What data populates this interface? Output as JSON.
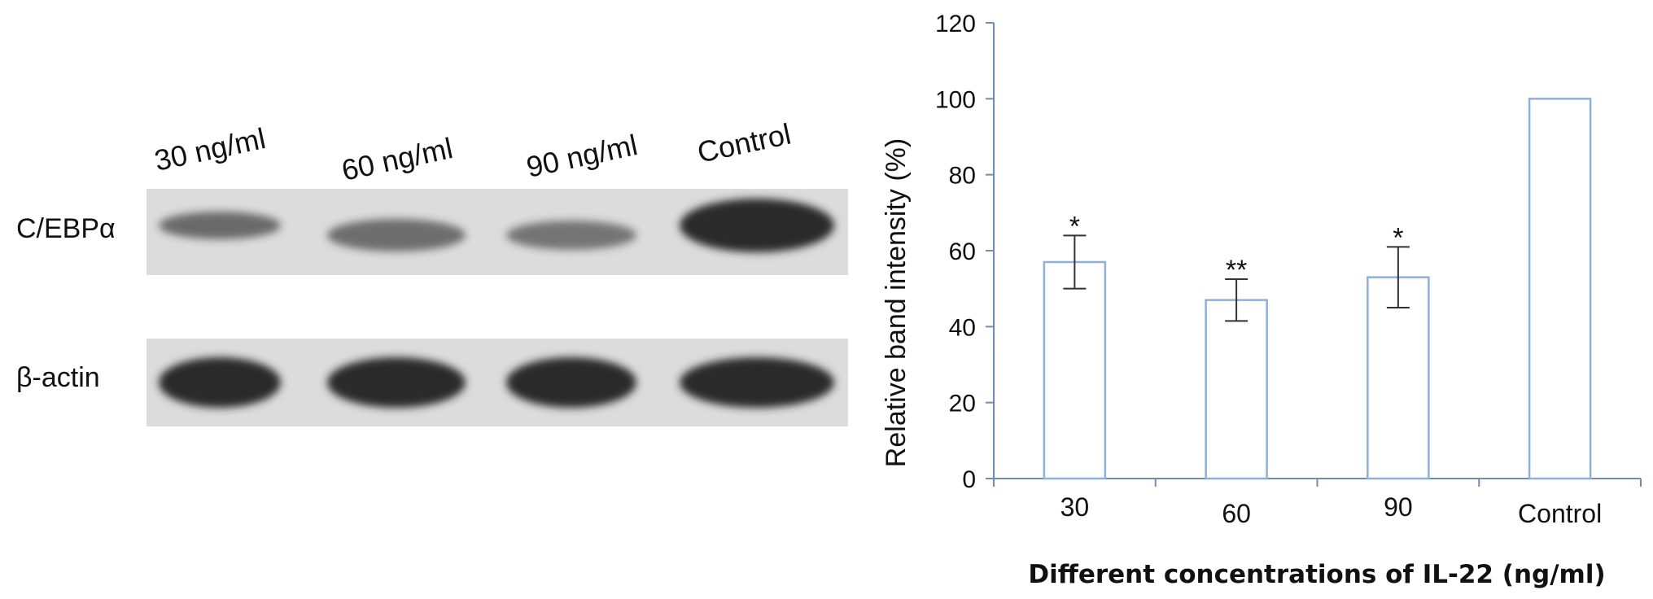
{
  "blot": {
    "lanes": [
      "30 ng/ml",
      "60 ng/ml",
      "90 ng/ml",
      "Control"
    ],
    "rows": [
      {
        "label": "C/EBPα",
        "intensity": [
          0.45,
          0.42,
          0.35,
          1.0
        ]
      },
      {
        "label": "β-actin",
        "intensity": [
          1.0,
          1.0,
          1.0,
          1.0
        ]
      }
    ],
    "band_color": "#2a2a2a",
    "membrane_color": "#dcdcdc"
  },
  "chart_data": {
    "type": "bar",
    "categories": [
      "30",
      "60",
      "90",
      "Control"
    ],
    "values": [
      57,
      47,
      53,
      100
    ],
    "error": [
      7,
      5.5,
      8,
      0
    ],
    "significance": [
      "*",
      "**",
      "*",
      ""
    ],
    "title": "",
    "xlabel": "Different concentrations of IL-22 (ng/ml)",
    "ylabel": "Relative band intensity (%)",
    "ylim": [
      0,
      120
    ],
    "yticks": [
      0,
      20,
      40,
      60,
      80,
      100,
      120
    ],
    "bar_color": "#8fb0d8",
    "bar_fill": "#ffffff",
    "grid": false
  }
}
